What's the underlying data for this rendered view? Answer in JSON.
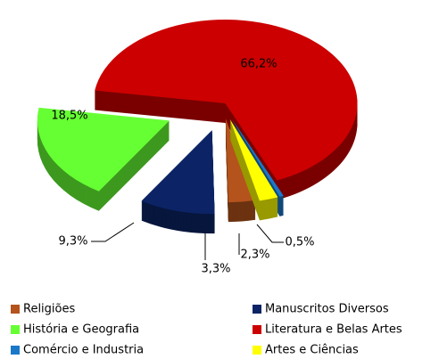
{
  "chart_data": {
    "type": "pie",
    "categories": [
      "Religiões",
      "Manuscritos Diversos",
      "História e Geografia",
      "Literatura e Belas Artes",
      "Comércio e Industria",
      "Artes e Ciências"
    ],
    "values": [
      3.3,
      9.3,
      18.5,
      66.2,
      0.5,
      2.3
    ],
    "value_labels": [
      "3,3%",
      "9,3%",
      "18,5%",
      "66,2%",
      "0,5%",
      "2,3%"
    ],
    "colors": [
      "#b4531c",
      "#0c2466",
      "#66ff33",
      "#cc0000",
      "#1a78c8",
      "#ffff00"
    ],
    "legend": "bottom"
  }
}
